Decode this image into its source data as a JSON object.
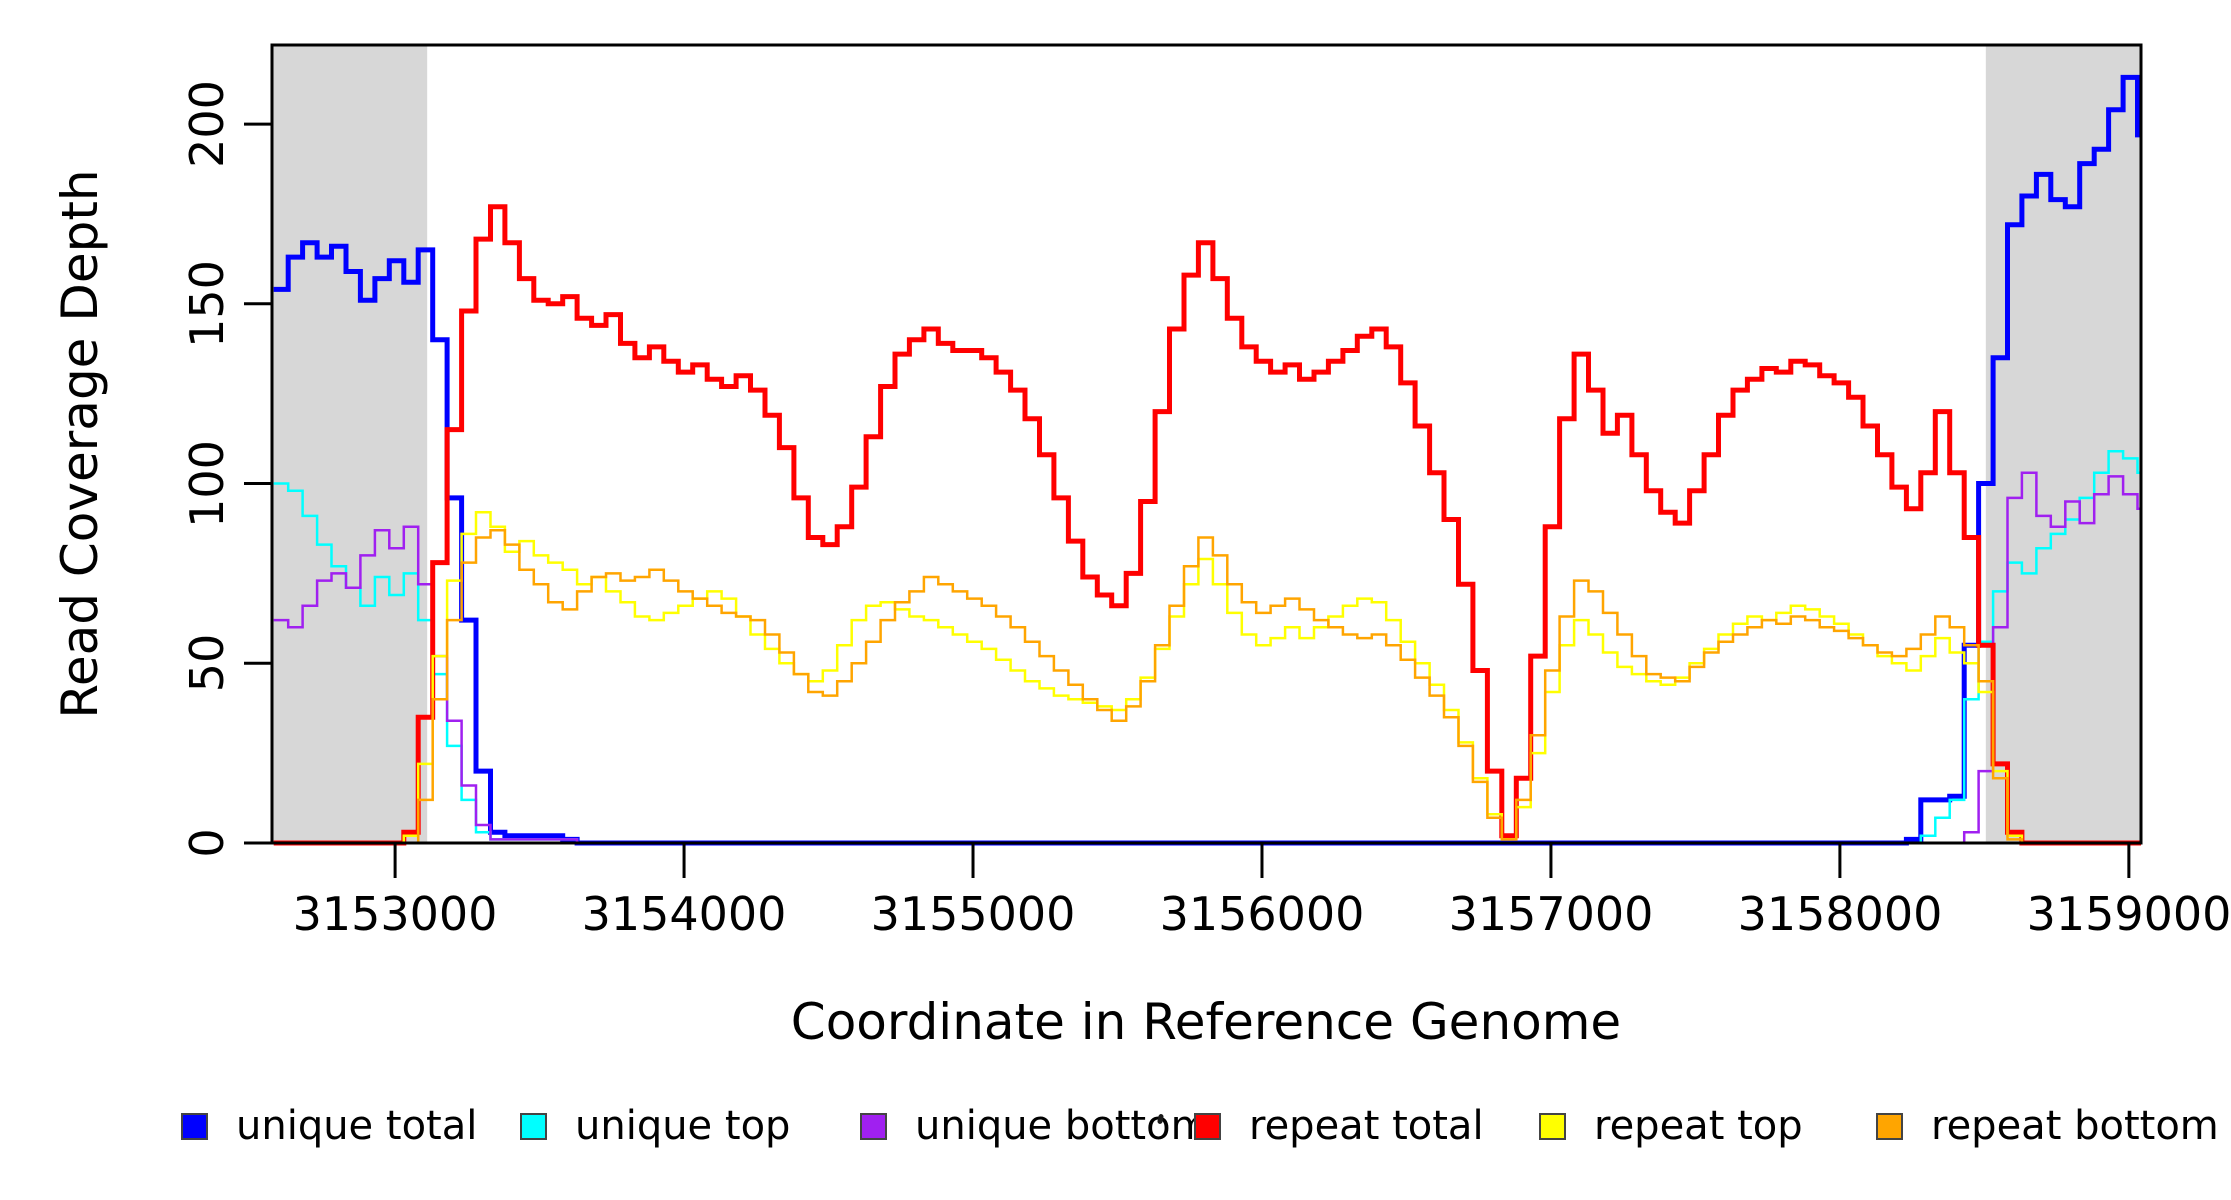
{
  "figure": {
    "x_axis_title": "Coordinate in Reference Genome",
    "y_axis_title": "Read Coverage Depth"
  },
  "legend": {
    "items": [
      {
        "label": "unique total",
        "color": "#0000ff"
      },
      {
        "label": "unique top",
        "color": "#00ffff"
      },
      {
        "label": "unique bottom",
        "color": "#a020f0"
      },
      {
        "label": "repeat total",
        "color": "#ff0000"
      },
      {
        "label": "repeat top",
        "color": "#ffff00"
      },
      {
        "label": "repeat bottom",
        "color": "#ffa500"
      }
    ]
  },
  "chart_data": {
    "type": "line",
    "line_style": "step",
    "title": "",
    "xlabel": "Coordinate in Reference Genome",
    "ylabel": "Read Coverage Depth",
    "grid": false,
    "legend_position": "bottom",
    "x_axis": {
      "range": [
        3152574,
        3159042
      ],
      "ticks": [
        3153000,
        3154000,
        3155000,
        3156000,
        3157000,
        3158000,
        3159000
      ],
      "tick_labels": [
        "3153000",
        "3154000",
        "3155000",
        "3156000",
        "3157000",
        "3158000",
        "3159000"
      ]
    },
    "y_axis": {
      "range": [
        0,
        222
      ],
      "ticks": [
        0,
        50,
        100,
        150,
        200
      ],
      "tick_labels": [
        "0",
        "50",
        "100",
        "150",
        "200"
      ]
    },
    "shaded_regions": [
      {
        "x0": 3152574,
        "x1": 3153111,
        "color": "#d7d7d7"
      },
      {
        "x0": 3158505,
        "x1": 3159042,
        "color": "#d7d7d7"
      }
    ],
    "x_start": 3152580,
    "x_step": 50,
    "series": [
      {
        "name": "unique total",
        "color": "#0000ff",
        "width": 5,
        "values": [
          154,
          163,
          167,
          163,
          166,
          159,
          151,
          157,
          162,
          156,
          165,
          140,
          96,
          62,
          20,
          3,
          2,
          2,
          2,
          2,
          1,
          0,
          0,
          0,
          0,
          0,
          0,
          0,
          0,
          0,
          0,
          0,
          0,
          0,
          0,
          0,
          0,
          0,
          0,
          0,
          0,
          0,
          0,
          0,
          0,
          0,
          0,
          0,
          0,
          0,
          0,
          0,
          0,
          0,
          0,
          0,
          0,
          0,
          0,
          0,
          0,
          0,
          0,
          0,
          0,
          0,
          0,
          0,
          0,
          0,
          0,
          0,
          0,
          0,
          0,
          0,
          0,
          0,
          0,
          0,
          0,
          0,
          0,
          0,
          0,
          0,
          0,
          0,
          0,
          0,
          0,
          0,
          0,
          0,
          0,
          0,
          0,
          0,
          0,
          0,
          0,
          0,
          0,
          0,
          0,
          0,
          0,
          0,
          0,
          0,
          0,
          0,
          0,
          1,
          12,
          12,
          13,
          55,
          100,
          135,
          172,
          180,
          186,
          179,
          177,
          189,
          193,
          204,
          213,
          197
        ]
      },
      {
        "name": "unique top",
        "color": "#00ffff",
        "width": 2.5,
        "values": [
          100,
          98,
          91,
          83,
          77,
          71,
          66,
          74,
          69,
          75,
          62,
          47,
          27,
          12,
          3,
          1,
          1,
          1,
          1,
          1,
          1,
          0,
          0,
          0,
          0,
          0,
          0,
          0,
          0,
          0,
          0,
          0,
          0,
          0,
          0,
          0,
          0,
          0,
          0,
          0,
          0,
          0,
          0,
          0,
          0,
          0,
          0,
          0,
          0,
          0,
          0,
          0,
          0,
          0,
          0,
          0,
          0,
          0,
          0,
          0,
          0,
          0,
          0,
          0,
          0,
          0,
          0,
          0,
          0,
          0,
          0,
          0,
          0,
          0,
          0,
          0,
          0,
          0,
          0,
          0,
          0,
          0,
          0,
          0,
          0,
          0,
          0,
          0,
          0,
          0,
          0,
          0,
          0,
          0,
          0,
          0,
          0,
          0,
          0,
          0,
          0,
          0,
          0,
          0,
          0,
          0,
          0,
          0,
          0,
          0,
          0,
          0,
          0,
          0,
          2,
          7,
          12,
          40,
          56,
          70,
          78,
          75,
          82,
          86,
          90,
          96,
          103,
          109,
          107,
          103
        ]
      },
      {
        "name": "unique bottom",
        "color": "#a020f0",
        "width": 2.5,
        "values": [
          62,
          60,
          66,
          73,
          75,
          71,
          80,
          87,
          82,
          88,
          72,
          52,
          34,
          16,
          5,
          1,
          1,
          1,
          1,
          1,
          1,
          0,
          0,
          0,
          0,
          0,
          0,
          0,
          0,
          0,
          0,
          0,
          0,
          0,
          0,
          0,
          0,
          0,
          0,
          0,
          0,
          0,
          0,
          0,
          0,
          0,
          0,
          0,
          0,
          0,
          0,
          0,
          0,
          0,
          0,
          0,
          0,
          0,
          0,
          0,
          0,
          0,
          0,
          0,
          0,
          0,
          0,
          0,
          0,
          0,
          0,
          0,
          0,
          0,
          0,
          0,
          0,
          0,
          0,
          0,
          0,
          0,
          0,
          0,
          0,
          0,
          0,
          0,
          0,
          0,
          0,
          0,
          0,
          0,
          0,
          0,
          0,
          0,
          0,
          0,
          0,
          0,
          0,
          0,
          0,
          0,
          0,
          0,
          0,
          0,
          0,
          0,
          0,
          0,
          0,
          0,
          0,
          3,
          20,
          60,
          96,
          103,
          91,
          88,
          95,
          89,
          97,
          102,
          97,
          93
        ]
      },
      {
        "name": "repeat total",
        "color": "#ff0000",
        "width": 5,
        "values": [
          0,
          0,
          0,
          0,
          0,
          0,
          0,
          0,
          0,
          3,
          35,
          78,
          115,
          148,
          168,
          177,
          167,
          157,
          151,
          150,
          152,
          146,
          144,
          147,
          139,
          135,
          138,
          134,
          131,
          133,
          129,
          127,
          130,
          126,
          119,
          110,
          96,
          85,
          83,
          88,
          99,
          113,
          127,
          136,
          140,
          143,
          139,
          137,
          137,
          135,
          131,
          126,
          118,
          108,
          96,
          84,
          74,
          69,
          66,
          75,
          95,
          120,
          143,
          158,
          167,
          157,
          146,
          138,
          134,
          131,
          133,
          129,
          131,
          134,
          137,
          141,
          143,
          138,
          128,
          116,
          103,
          90,
          72,
          48,
          20,
          2,
          18,
          52,
          88,
          118,
          136,
          126,
          114,
          119,
          108,
          98,
          92,
          89,
          98,
          108,
          119,
          126,
          129,
          132,
          131,
          134,
          133,
          130,
          128,
          124,
          116,
          108,
          99,
          93,
          103,
          120,
          103,
          85,
          55,
          22,
          3,
          0,
          0,
          0,
          0,
          0,
          0,
          0,
          0,
          0
        ]
      },
      {
        "name": "repeat top",
        "color": "#ffff00",
        "width": 2.5,
        "values": [
          0,
          0,
          0,
          0,
          0,
          0,
          0,
          0,
          0,
          2,
          22,
          52,
          73,
          86,
          92,
          88,
          81,
          84,
          80,
          78,
          76,
          72,
          74,
          70,
          67,
          63,
          62,
          64,
          66,
          68,
          70,
          68,
          63,
          58,
          54,
          50,
          47,
          45,
          48,
          55,
          62,
          66,
          67,
          65,
          63,
          62,
          60,
          58,
          56,
          54,
          51,
          48,
          45,
          43,
          41,
          40,
          39,
          38,
          37,
          40,
          46,
          54,
          63,
          72,
          79,
          72,
          64,
          58,
          55,
          57,
          60,
          57,
          60,
          63,
          66,
          68,
          67,
          62,
          56,
          50,
          44,
          37,
          28,
          18,
          8,
          1,
          10,
          25,
          42,
          55,
          62,
          58,
          53,
          49,
          47,
          45,
          44,
          46,
          50,
          54,
          58,
          61,
          63,
          62,
          64,
          66,
          65,
          63,
          61,
          58,
          55,
          52,
          50,
          48,
          52,
          57,
          53,
          50,
          42,
          20,
          2,
          0,
          0,
          0,
          0,
          0,
          0,
          0,
          0,
          0
        ]
      },
      {
        "name": "repeat bottom",
        "color": "#ffa500",
        "width": 2.5,
        "values": [
          0,
          0,
          0,
          0,
          0,
          0,
          0,
          0,
          0,
          0,
          12,
          40,
          62,
          78,
          85,
          87,
          83,
          76,
          72,
          67,
          65,
          70,
          74,
          75,
          73,
          74,
          76,
          73,
          70,
          68,
          66,
          64,
          63,
          62,
          58,
          53,
          47,
          42,
          41,
          45,
          50,
          56,
          62,
          67,
          70,
          74,
          72,
          70,
          68,
          66,
          63,
          60,
          56,
          52,
          48,
          44,
          40,
          37,
          34,
          38,
          45,
          55,
          66,
          77,
          85,
          80,
          72,
          67,
          64,
          66,
          68,
          65,
          62,
          60,
          58,
          57,
          58,
          55,
          51,
          46,
          41,
          35,
          27,
          17,
          7,
          1,
          12,
          30,
          48,
          63,
          73,
          70,
          64,
          58,
          52,
          47,
          46,
          45,
          49,
          53,
          56,
          58,
          60,
          62,
          61,
          63,
          62,
          60,
          59,
          57,
          55,
          53,
          52,
          54,
          58,
          63,
          60,
          55,
          45,
          18,
          1,
          0,
          0,
          0,
          0,
          0,
          0,
          0,
          0,
          0
        ]
      }
    ]
  }
}
